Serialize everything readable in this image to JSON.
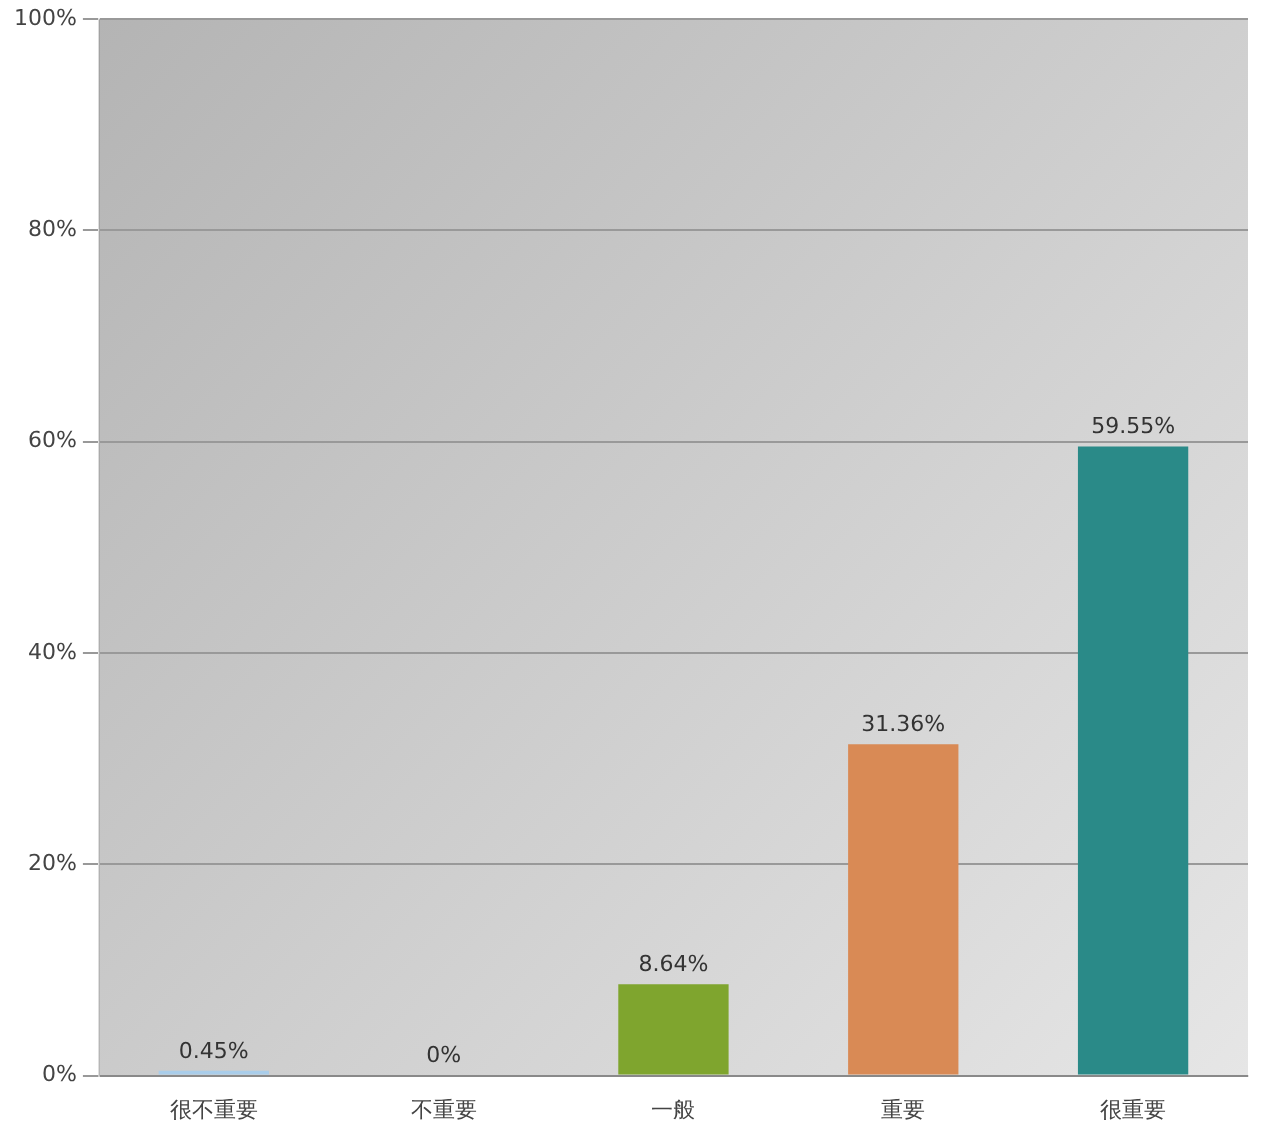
{
  "chart_data": {
    "type": "bar",
    "categories": [
      "很不重要",
      "不重要",
      "一般",
      "重要",
      "很重要"
    ],
    "values": [
      0.45,
      0,
      8.64,
      31.36,
      59.55
    ],
    "colors": [
      "#a9cdea",
      "#e8b93a",
      "#7fa52e",
      "#d98a55",
      "#2a8a88"
    ],
    "value_labels": [
      "0.45%",
      "0%",
      "8.64%",
      "31.36%",
      "59.55%"
    ],
    "ylim": [
      0,
      100
    ],
    "yticks": [
      {
        "value": 0,
        "label": "0%"
      },
      {
        "value": 20,
        "label": "20%"
      },
      {
        "value": 40,
        "label": "40%"
      },
      {
        "value": 60,
        "label": "60%"
      },
      {
        "value": 80,
        "label": "80%"
      },
      {
        "value": 100,
        "label": "100%"
      }
    ],
    "grid": "y",
    "legend": false
  }
}
